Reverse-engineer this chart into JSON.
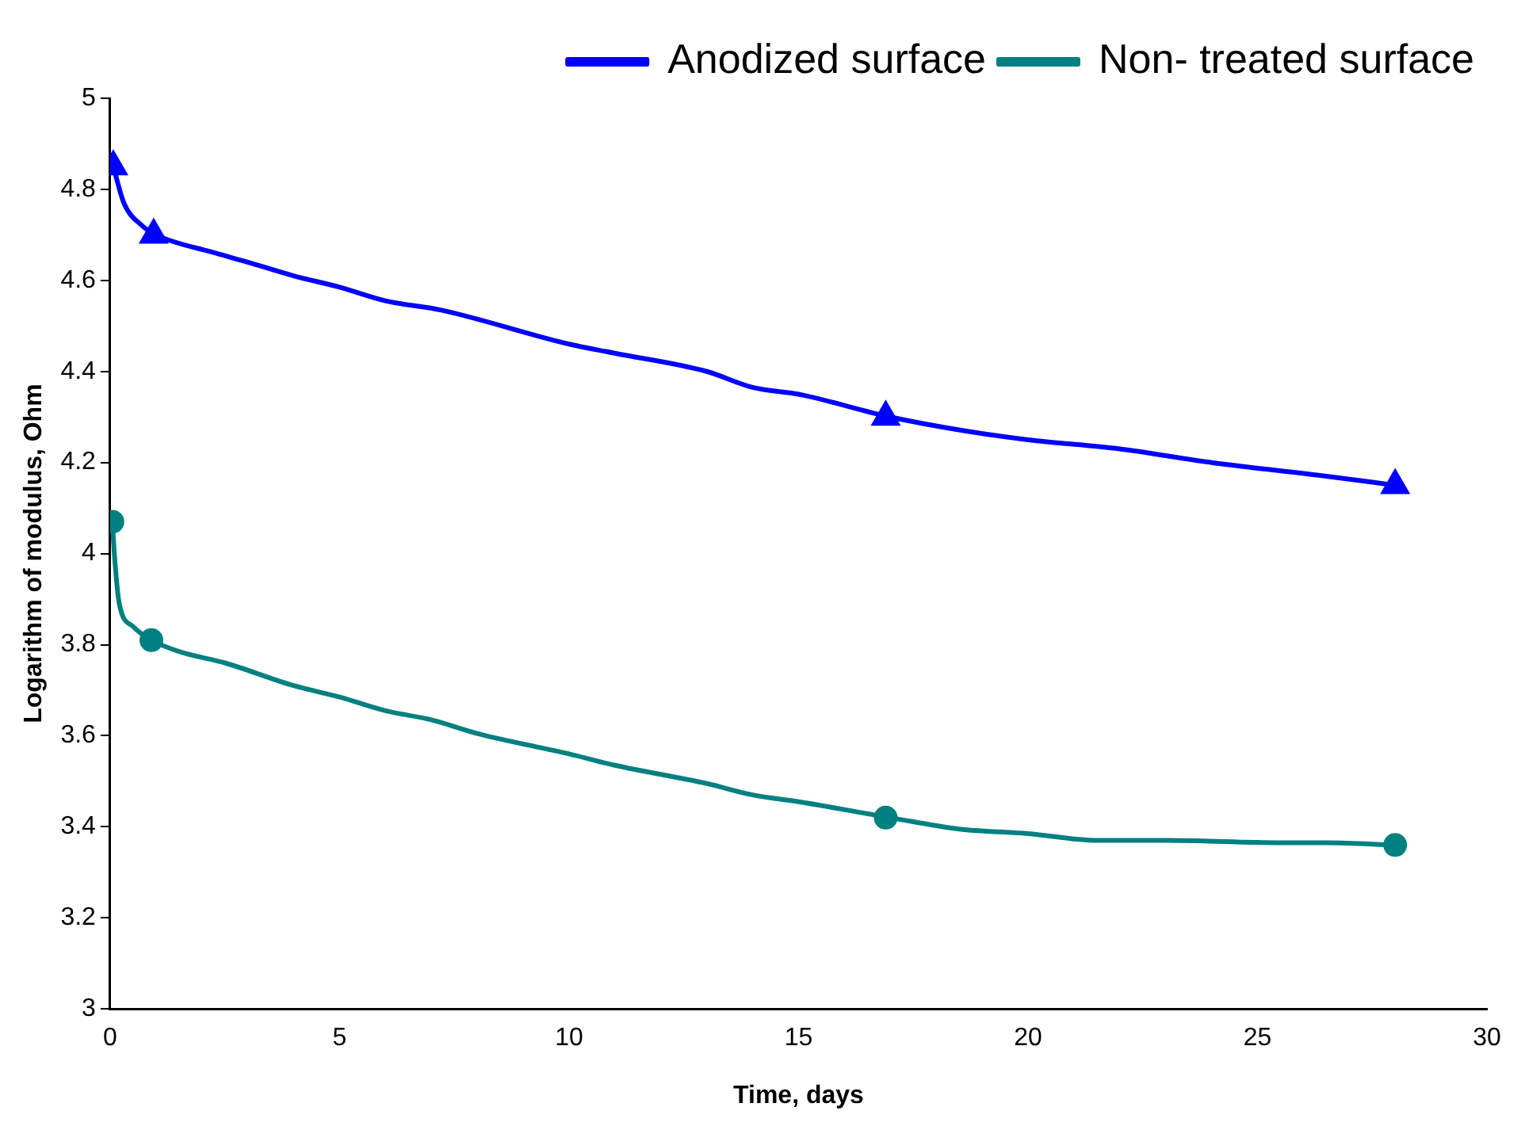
{
  "chart_data": {
    "type": "line",
    "xlabel": "Time, days",
    "ylabel": "Logarithm of modulus, Ohm",
    "xlim": [
      0,
      30
    ],
    "xticks": [
      0,
      5,
      10,
      15,
      20,
      25,
      30
    ],
    "ylim": [
      3,
      5
    ],
    "yticks": [
      3,
      {
        "value": 3.2,
        "label": "3.2"
      },
      {
        "value": 3.4,
        "label": "3.4"
      },
      {
        "value": 3.6,
        "label": "3.6"
      },
      {
        "value": 3.8,
        "label": "3.8"
      },
      4,
      {
        "value": 4.2,
        "label": "4.2"
      },
      {
        "value": 4.4,
        "label": "4.4"
      },
      {
        "value": 4.6,
        "label": "4.6"
      },
      {
        "value": 4.8,
        "label": "4.8"
      },
      5
    ],
    "grid": false,
    "legend": "top right",
    "line_style": "solid",
    "series": [
      {
        "name": "Anodized surface",
        "color": "#0000ff",
        "marker": "none",
        "x": [
          0.07,
          0.3,
          0.7,
          1,
          2.3,
          3,
          4,
          5,
          6,
          7.2,
          10,
          11,
          13,
          14,
          15,
          17,
          18.6,
          20,
          22,
          24,
          26.5,
          28
        ],
        "values": [
          4.85,
          4.77,
          4.72,
          4.7,
          4.66,
          4.64,
          4.61,
          4.585,
          4.555,
          4.535,
          4.46,
          4.44,
          4.4,
          4.365,
          4.35,
          4.3,
          4.27,
          4.25,
          4.23,
          4.2,
          4.17,
          4.15
        ]
      },
      {
        "color": "#0000ff",
        "type": "scatter",
        "marker": "triangle",
        "x": [
          0.07,
          0.95,
          16.9,
          28
        ],
        "values": [
          4.85,
          4.7,
          4.3,
          4.15
        ]
      },
      {
        "name": "Non- treated surface",
        "color": "#008080",
        "marker": "none",
        "x": [
          0.05,
          0.1,
          0.2,
          0.5,
          0.9,
          1.5,
          2.5,
          4,
          5,
          6,
          7,
          8,
          10,
          11,
          13,
          14,
          15,
          17,
          18.5,
          20,
          21.5,
          23,
          25.5,
          26.5,
          28
        ],
        "values": [
          4.07,
          3.99,
          3.89,
          3.84,
          3.81,
          3.785,
          3.76,
          3.71,
          3.685,
          3.655,
          3.635,
          3.605,
          3.56,
          3.535,
          3.495,
          3.47,
          3.455,
          3.42,
          3.395,
          3.385,
          3.37,
          3.37,
          3.365,
          3.365,
          3.36
        ]
      },
      {
        "color": "#008080",
        "type": "scatter",
        "marker": "circle",
        "x": [
          0.05,
          0.9,
          16.9,
          28
        ],
        "values": [
          4.07,
          3.81,
          3.42,
          3.36
        ]
      }
    ]
  }
}
